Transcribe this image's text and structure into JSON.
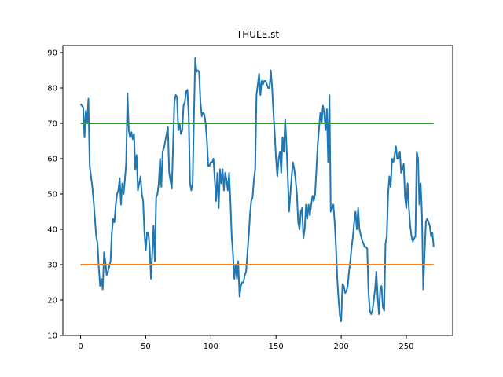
{
  "chart_data": {
    "type": "line",
    "title": "THULE.st",
    "xlabel": "",
    "ylabel": "",
    "xlim": [
      -13.6,
      285.6
    ],
    "ylim": [
      10,
      92
    ],
    "xticks": [
      0,
      50,
      100,
      150,
      200,
      250
    ],
    "yticks": [
      10,
      20,
      30,
      40,
      50,
      60,
      70,
      80,
      90
    ],
    "grid": false,
    "series": [
      {
        "color": "#1f77b4",
        "x": [
          0,
          2,
          3,
          4,
          5,
          6,
          7,
          9,
          10,
          12,
          13,
          14,
          15,
          16,
          17,
          18,
          19,
          20,
          21,
          23,
          24,
          25,
          26,
          27,
          28,
          29,
          30,
          31,
          32,
          33,
          34,
          35,
          36,
          37,
          38,
          39,
          40,
          41,
          42,
          43,
          44,
          46,
          47,
          48,
          49,
          50,
          51,
          52,
          53,
          54,
          55,
          56,
          57,
          58,
          59,
          60,
          61,
          62,
          63,
          64,
          65,
          67,
          68,
          70,
          72,
          73,
          74,
          75,
          76,
          77,
          78,
          79,
          80,
          81,
          82,
          83,
          84,
          85,
          86,
          87,
          88,
          89,
          90,
          91,
          92,
          93,
          94,
          95,
          96,
          97,
          98,
          99,
          100,
          101,
          102,
          103,
          104,
          105,
          106,
          107,
          108,
          109,
          110,
          111,
          112,
          113,
          114,
          115,
          116,
          117,
          118,
          119,
          120,
          121,
          122,
          123,
          124,
          125,
          126,
          127,
          128,
          129,
          130,
          131,
          132,
          133,
          134,
          135,
          136,
          137,
          138,
          139,
          140,
          141,
          142,
          143,
          144,
          145,
          146,
          147,
          148,
          149,
          150,
          151,
          152,
          153,
          154,
          155,
          156,
          157,
          158,
          159,
          160,
          161,
          162,
          163,
          164,
          165,
          166,
          167,
          168,
          169,
          170,
          171,
          172,
          173,
          174,
          175,
          176,
          177,
          178,
          179,
          180,
          181,
          182,
          183,
          184,
          185,
          186,
          187,
          188,
          189,
          190,
          191,
          192,
          193,
          194,
          195,
          196,
          197,
          198,
          199,
          200,
          201,
          202,
          203,
          204,
          205,
          206,
          207,
          208,
          209,
          210,
          211,
          212,
          213,
          214,
          215,
          216,
          217,
          218,
          219,
          220,
          221,
          222,
          223,
          224,
          225,
          226,
          227,
          228,
          229,
          230,
          231,
          232,
          233,
          234,
          235,
          236,
          237,
          238,
          239,
          240,
          241,
          242,
          243,
          244,
          245,
          246,
          247,
          248,
          249,
          250,
          251,
          252,
          253,
          254,
          255,
          256,
          257,
          258,
          259,
          260,
          261,
          262,
          263,
          264,
          265,
          266,
          267,
          268,
          269,
          270,
          271
        ],
        "values": [
          75.5,
          74.5,
          66,
          73.5,
          70,
          77,
          58,
          52,
          48,
          38,
          36,
          29,
          24,
          26,
          23,
          33.5,
          31,
          27,
          28,
          31,
          39,
          43,
          42,
          47,
          50,
          51,
          54.5,
          47,
          53,
          50,
          54,
          59,
          78.5,
          68,
          66,
          67.5,
          65.5,
          67,
          57,
          61,
          51,
          55,
          50,
          48,
          39,
          34,
          39,
          39,
          35,
          26,
          33,
          41,
          31,
          49,
          50,
          53,
          60,
          52,
          62,
          63,
          65,
          69,
          56,
          51.5,
          76,
          78,
          77.5,
          68,
          70,
          67,
          68,
          75,
          76,
          79,
          79.5,
          72,
          53,
          51,
          53,
          72,
          88.5,
          84.5,
          85,
          84.5,
          76,
          72,
          73,
          72.5,
          70,
          65,
          58,
          58,
          59,
          59,
          60,
          54,
          48,
          56,
          46,
          57,
          53,
          57,
          51,
          56,
          54,
          51,
          56,
          48,
          38,
          33,
          26,
          30,
          26,
          31,
          21,
          24,
          25,
          25,
          27,
          28,
          33,
          38,
          44,
          48,
          49,
          54,
          57,
          78,
          81,
          84,
          78,
          82,
          81,
          82,
          82,
          81,
          80,
          80,
          85,
          80,
          73,
          67,
          60,
          55,
          60,
          62,
          56,
          66,
          62,
          71,
          64,
          55,
          45,
          50,
          55,
          59,
          57,
          54,
          50,
          42,
          40,
          45,
          46,
          37.5,
          40,
          47,
          43,
          47,
          44,
          47,
          49.5,
          48,
          50,
          57,
          64,
          68.5,
          73,
          70,
          75,
          73,
          68,
          74,
          59,
          78,
          45,
          46,
          47,
          42,
          35,
          26,
          20,
          15.5,
          14,
          24.5,
          24,
          22,
          22.5,
          24,
          28,
          31,
          35,
          38,
          42,
          45,
          40,
          46,
          40,
          38.5,
          37,
          36,
          35,
          35,
          34.5,
          22,
          17,
          16,
          17,
          20,
          23,
          28,
          21,
          16,
          23,
          24,
          18,
          17,
          36,
          38,
          50,
          55,
          52,
          60,
          59,
          61,
          63.5,
          60,
          60,
          62,
          56,
          57,
          58.5,
          49,
          46,
          53,
          46,
          41,
          38,
          36.5,
          37.5,
          38,
          62,
          60,
          47,
          53,
          44,
          23,
          33,
          42,
          43,
          42,
          41,
          38,
          39,
          35
        ]
      },
      {
        "color": "#ff7f0e",
        "x": [
          0,
          271
        ],
        "values": [
          30,
          30
        ]
      },
      {
        "color": "#2ca02c",
        "x": [
          0,
          271
        ],
        "values": [
          70,
          70
        ]
      }
    ]
  }
}
